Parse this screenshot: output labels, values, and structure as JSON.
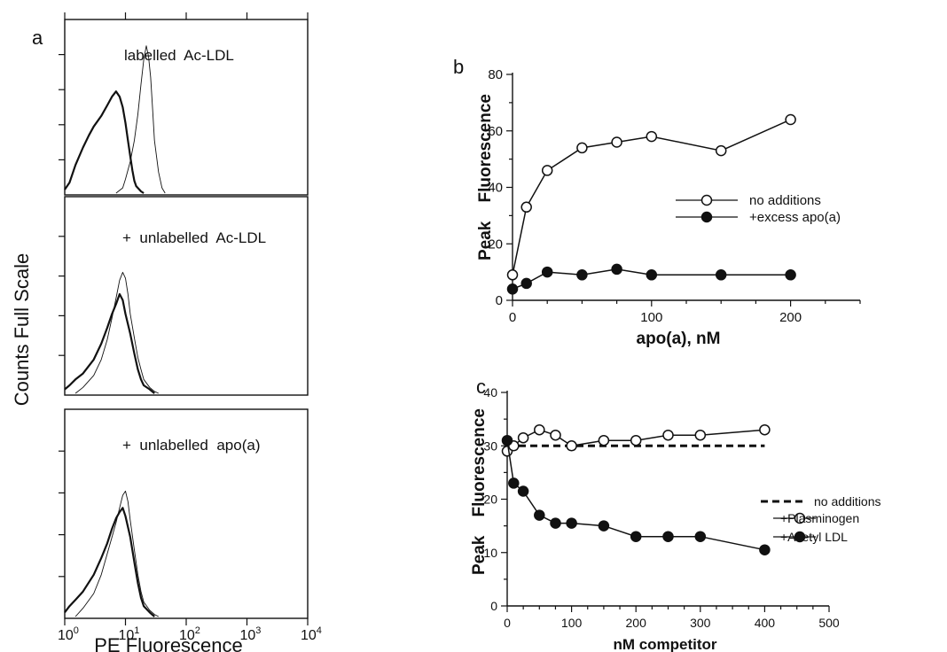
{
  "chart_data": [
    {
      "panel": "a",
      "type": "line",
      "xlabel": "PE Fluorescence",
      "ylabel": "Counts Full Scale",
      "x_scale": "log",
      "xlim": [
        1,
        10000
      ],
      "x_ticks": [
        1,
        10,
        100,
        1000,
        10000
      ],
      "subplots": [
        {
          "label": "labelled  Ac-LDL",
          "series": [
            {
              "style": "thick",
              "x": [
                1.0,
                1.2,
                1.5,
                2.0,
                2.5,
                3.0,
                4.0,
                5.0,
                6.0,
                7.0,
                8.0,
                9.0,
                10.0,
                11.0,
                12.0,
                13.0,
                14.0,
                15.0,
                18.0,
                20.0
              ],
              "y": [
                0.02,
                0.06,
                0.16,
                0.26,
                0.33,
                0.38,
                0.44,
                0.5,
                0.55,
                0.58,
                0.55,
                0.49,
                0.4,
                0.3,
                0.21,
                0.13,
                0.07,
                0.04,
                0.01,
                0.0
              ]
            },
            {
              "style": "thin",
              "x": [
                7.0,
                9.0,
                10.0,
                12.0,
                14.0,
                16.0,
                18.0,
                20.0,
                22.0,
                24.0,
                26.0,
                28.0,
                30.0,
                35.0,
                40.0,
                45.0
              ],
              "y": [
                0.0,
                0.03,
                0.08,
                0.18,
                0.3,
                0.45,
                0.62,
                0.76,
                0.84,
                0.78,
                0.66,
                0.48,
                0.3,
                0.12,
                0.03,
                0.0
              ]
            }
          ]
        },
        {
          "label": "+  unlabelled  Ac-LDL",
          "series": [
            {
              "style": "thick",
              "x": [
                1.0,
                1.2,
                1.5,
                2.0,
                3.0,
                4.0,
                5.0,
                6.0,
                7.0,
                8.0,
                9.0,
                10.0,
                12.0,
                14.0,
                16.0,
                18.0,
                20.0,
                25.0,
                30.0
              ],
              "y": [
                0.02,
                0.04,
                0.07,
                0.1,
                0.17,
                0.25,
                0.33,
                0.4,
                0.45,
                0.5,
                0.47,
                0.4,
                0.3,
                0.2,
                0.12,
                0.07,
                0.04,
                0.02,
                0.0
              ]
            },
            {
              "style": "thin",
              "x": [
                1.5,
                2.0,
                3.0,
                4.0,
                5.0,
                6.0,
                7.0,
                8.0,
                9.0,
                10.0,
                11.0,
                12.0,
                14.0,
                16.0,
                18.0,
                20.0,
                25.0,
                30.0,
                35.0
              ],
              "y": [
                0.0,
                0.03,
                0.09,
                0.17,
                0.27,
                0.38,
                0.48,
                0.57,
                0.61,
                0.58,
                0.5,
                0.4,
                0.28,
                0.18,
                0.12,
                0.07,
                0.03,
                0.01,
                0.0
              ]
            }
          ]
        },
        {
          "label": "+  unlabelled  apo(a)",
          "series": [
            {
              "style": "thick",
              "x": [
                1.0,
                1.2,
                1.5,
                2.0,
                3.0,
                4.0,
                5.0,
                6.0,
                7.0,
                8.0,
                9.0,
                10.0,
                12.0,
                14.0,
                16.0,
                18.0,
                20.0,
                25.0,
                30.0
              ],
              "y": [
                0.02,
                0.05,
                0.08,
                0.12,
                0.2,
                0.28,
                0.35,
                0.42,
                0.47,
                0.5,
                0.52,
                0.48,
                0.38,
                0.26,
                0.16,
                0.09,
                0.05,
                0.02,
                0.0
              ]
            },
            {
              "style": "thin",
              "x": [
                1.5,
                2.0,
                3.0,
                4.0,
                5.0,
                6.0,
                7.0,
                8.0,
                9.0,
                10.0,
                11.0,
                12.0,
                14.0,
                16.0,
                18.0,
                20.0,
                25.0,
                30.0,
                35.0
              ],
              "y": [
                0.0,
                0.04,
                0.11,
                0.2,
                0.3,
                0.38,
                0.45,
                0.52,
                0.58,
                0.6,
                0.55,
                0.46,
                0.32,
                0.2,
                0.12,
                0.07,
                0.03,
                0.01,
                0.0
              ]
            }
          ]
        }
      ]
    },
    {
      "panel": "b",
      "type": "line",
      "xlabel": "apo(a), nM",
      "ylabel": "Peak    Fluorescence",
      "xlim": [
        0,
        250
      ],
      "ylim": [
        0,
        80
      ],
      "x_ticks": [
        0,
        100,
        200
      ],
      "y_ticks": [
        0,
        20,
        40,
        60,
        80
      ],
      "legend_position": "right",
      "series": [
        {
          "name": "no additions",
          "marker": "open-circle",
          "x": [
            0,
            10,
            25,
            50,
            75,
            100,
            150,
            200
          ],
          "y": [
            9,
            33,
            46,
            54,
            56,
            58,
            53,
            64
          ]
        },
        {
          "name": "+excess apo(a)",
          "marker": "filled-circle",
          "x": [
            0,
            10,
            25,
            50,
            75,
            100,
            150,
            200
          ],
          "y": [
            4,
            6,
            10,
            9,
            11,
            9,
            9,
            9
          ]
        }
      ]
    },
    {
      "panel": "c",
      "type": "line",
      "xlabel": "nM competitor",
      "ylabel": "Peak    Fluorescence",
      "xlim": [
        0,
        500
      ],
      "ylim": [
        0,
        40
      ],
      "x_ticks": [
        0,
        100,
        200,
        300,
        400,
        500
      ],
      "y_ticks": [
        0,
        10,
        20,
        30,
        40
      ],
      "legend_position": "right",
      "series": [
        {
          "name": "no additions",
          "marker": "dashed-line",
          "x": [
            0,
            400
          ],
          "y": [
            30,
            30
          ]
        },
        {
          "name": "+Plasminogen",
          "marker": "open-circle",
          "x": [
            0,
            10,
            25,
            50,
            75,
            100,
            150,
            200,
            250,
            300,
            400
          ],
          "y": [
            29,
            30,
            31.5,
            33,
            32,
            30,
            31,
            31,
            32,
            32,
            33
          ]
        },
        {
          "name": "+Acetyl LDL",
          "marker": "filled-circle",
          "x": [
            0,
            10,
            25,
            50,
            75,
            100,
            150,
            200,
            250,
            300,
            400
          ],
          "y": [
            31,
            23,
            21.5,
            17,
            15.5,
            15.5,
            15,
            13,
            13,
            13,
            10.5
          ]
        }
      ]
    }
  ]
}
